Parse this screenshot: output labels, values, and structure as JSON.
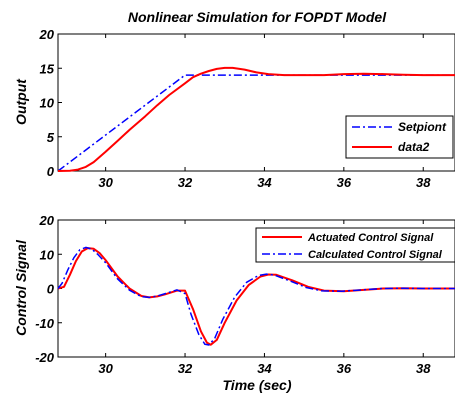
{
  "chart_data": [
    {
      "type": "line",
      "title": "Nonlinear Simulation for FOPDT Model",
      "xlabel": "",
      "ylabel": "Output",
      "xlim": [
        28.8,
        38.8
      ],
      "ylim": [
        0,
        20
      ],
      "xticks": [
        30,
        32,
        34,
        36,
        38
      ],
      "yticks": [
        0,
        5,
        10,
        15,
        20
      ],
      "grid": false,
      "legend_position": "bottom-right",
      "series": [
        {
          "name": "Setpiont",
          "color": "#0000ff",
          "style": "dashdot",
          "points": [
            [
              28.8,
              0
            ],
            [
              32.0,
              14.0
            ],
            [
              38.8,
              14.0
            ]
          ]
        },
        {
          "name": "data2",
          "color": "#ff0000",
          "style": "solid",
          "points": [
            [
              28.8,
              0
            ],
            [
              29.1,
              0.05
            ],
            [
              29.3,
              0.2
            ],
            [
              29.5,
              0.6
            ],
            [
              29.7,
              1.3
            ],
            [
              30.0,
              2.8
            ],
            [
              30.3,
              4.4
            ],
            [
              30.6,
              6.0
            ],
            [
              31.0,
              8.0
            ],
            [
              31.3,
              9.6
            ],
            [
              31.6,
              11.1
            ],
            [
              32.0,
              12.8
            ],
            [
              32.2,
              13.7
            ],
            [
              32.4,
              14.2
            ],
            [
              32.6,
              14.6
            ],
            [
              32.8,
              14.9
            ],
            [
              33.0,
              15.05
            ],
            [
              33.2,
              15.05
            ],
            [
              33.5,
              14.8
            ],
            [
              33.8,
              14.4
            ],
            [
              34.1,
              14.15
            ],
            [
              34.5,
              14.0
            ],
            [
              35.0,
              14.0
            ],
            [
              35.5,
              14.0
            ],
            [
              36.0,
              14.15
            ],
            [
              36.5,
              14.2
            ],
            [
              37.0,
              14.15
            ],
            [
              37.5,
              14.05
            ],
            [
              38.0,
              14.0
            ],
            [
              38.8,
              14.0
            ]
          ]
        }
      ]
    },
    {
      "type": "line",
      "title": "",
      "xlabel": "Time (sec)",
      "ylabel": "Control Signal",
      "xlim": [
        28.8,
        38.8
      ],
      "ylim": [
        -20,
        20
      ],
      "xticks": [
        30,
        32,
        34,
        36,
        38
      ],
      "yticks": [
        -20,
        -10,
        0,
        10,
        20
      ],
      "grid": false,
      "legend_position": "top-right",
      "series": [
        {
          "name": "Actuated Control Signal",
          "color": "#ff0000",
          "style": "solid",
          "points": [
            [
              28.8,
              0
            ],
            [
              28.95,
              0.5
            ],
            [
              29.1,
              4.0
            ],
            [
              29.25,
              8.0
            ],
            [
              29.4,
              10.8
            ],
            [
              29.55,
              11.8
            ],
            [
              29.7,
              11.6
            ],
            [
              29.85,
              10.3
            ],
            [
              30.0,
              8.3
            ],
            [
              30.3,
              3.5
            ],
            [
              30.6,
              0.0
            ],
            [
              30.9,
              -2.2
            ],
            [
              31.1,
              -2.6
            ],
            [
              31.3,
              -2.3
            ],
            [
              31.5,
              -1.7
            ],
            [
              31.8,
              -0.6
            ],
            [
              32.0,
              -0.6
            ],
            [
              32.2,
              -6.0
            ],
            [
              32.4,
              -12.5
            ],
            [
              32.55,
              -15.8
            ],
            [
              32.65,
              -16.4
            ],
            [
              32.8,
              -15.0
            ],
            [
              33.0,
              -10.0
            ],
            [
              33.3,
              -3.5
            ],
            [
              33.6,
              1.0
            ],
            [
              33.9,
              3.5
            ],
            [
              34.1,
              4.1
            ],
            [
              34.3,
              4.0
            ],
            [
              34.7,
              2.4
            ],
            [
              35.1,
              0.5
            ],
            [
              35.5,
              -0.6
            ],
            [
              36.0,
              -0.8
            ],
            [
              36.5,
              -0.4
            ],
            [
              37.0,
              0.0
            ],
            [
              37.5,
              0.1
            ],
            [
              38.0,
              0.0
            ],
            [
              38.8,
              0.0
            ]
          ]
        },
        {
          "name": "Calculated Control Signal",
          "color": "#0000ff",
          "style": "dashdot",
          "points": [
            [
              28.8,
              0
            ],
            [
              28.9,
              1.5
            ],
            [
              29.05,
              5.5
            ],
            [
              29.2,
              9.0
            ],
            [
              29.35,
              11.3
            ],
            [
              29.5,
              12.0
            ],
            [
              29.65,
              11.5
            ],
            [
              29.8,
              10.0
            ],
            [
              30.0,
              7.5
            ],
            [
              30.3,
              2.8
            ],
            [
              30.6,
              -0.5
            ],
            [
              30.9,
              -2.4
            ],
            [
              31.1,
              -2.6
            ],
            [
              31.3,
              -2.2
            ],
            [
              31.5,
              -1.5
            ],
            [
              31.8,
              -0.4
            ],
            [
              32.0,
              -1.5
            ],
            [
              32.15,
              -7.5
            ],
            [
              32.35,
              -13.5
            ],
            [
              32.5,
              -16.3
            ],
            [
              32.6,
              -16.5
            ],
            [
              32.75,
              -14.5
            ],
            [
              32.95,
              -9.0
            ],
            [
              33.25,
              -2.5
            ],
            [
              33.55,
              1.8
            ],
            [
              33.85,
              3.8
            ],
            [
              34.05,
              4.2
            ],
            [
              34.25,
              3.9
            ],
            [
              34.65,
              2.2
            ],
            [
              35.05,
              0.3
            ],
            [
              35.45,
              -0.7
            ],
            [
              35.95,
              -0.8
            ],
            [
              36.45,
              -0.4
            ],
            [
              36.95,
              0.0
            ],
            [
              37.45,
              0.1
            ],
            [
              37.95,
              0.0
            ],
            [
              38.8,
              0.0
            ]
          ]
        }
      ]
    }
  ]
}
